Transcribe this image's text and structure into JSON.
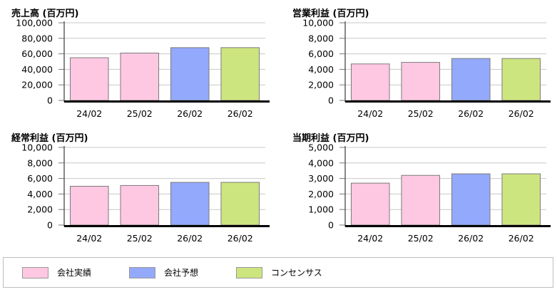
{
  "legend": {
    "items": [
      {
        "label": "会社実績",
        "color": "#ffc8e2"
      },
      {
        "label": "会社予想",
        "color": "#93a9fb"
      },
      {
        "label": "コンセンサス",
        "color": "#cde57f"
      }
    ]
  },
  "chart_data": [
    {
      "type": "bar",
      "title": "売上高 (百万円)",
      "categories": [
        "24/02",
        "25/02",
        "26/02",
        "26/02"
      ],
      "values": [
        55000,
        61000,
        68000,
        68000
      ],
      "colors": [
        "#ffc8e2",
        "#ffc8e2",
        "#93a9fb",
        "#cde57f"
      ],
      "yticks": [
        "0",
        "20,000",
        "40,000",
        "60,000",
        "80,000",
        "100,000"
      ],
      "ylim": [
        0,
        100000
      ]
    },
    {
      "type": "bar",
      "title": "営業利益 (百万円)",
      "categories": [
        "24/02",
        "25/02",
        "26/02",
        "26/02"
      ],
      "values": [
        4700,
        4900,
        5400,
        5400
      ],
      "colors": [
        "#ffc8e2",
        "#ffc8e2",
        "#93a9fb",
        "#cde57f"
      ],
      "yticks": [
        "0",
        "2,000",
        "4,000",
        "6,000",
        "8,000",
        "10,000"
      ],
      "ylim": [
        0,
        10000
      ]
    },
    {
      "type": "bar",
      "title": "経常利益 (百万円)",
      "categories": [
        "24/02",
        "25/02",
        "26/02",
        "26/02"
      ],
      "values": [
        5000,
        5100,
        5500,
        5500
      ],
      "colors": [
        "#ffc8e2",
        "#ffc8e2",
        "#93a9fb",
        "#cde57f"
      ],
      "yticks": [
        "0",
        "2,000",
        "4,000",
        "6,000",
        "8,000",
        "10,000"
      ],
      "ylim": [
        0,
        10000
      ]
    },
    {
      "type": "bar",
      "title": "当期利益 (百万円)",
      "categories": [
        "24/02",
        "25/02",
        "26/02",
        "26/02"
      ],
      "values": [
        2700,
        3200,
        3300,
        3300
      ],
      "colors": [
        "#ffc8e2",
        "#ffc8e2",
        "#93a9fb",
        "#cde57f"
      ],
      "yticks": [
        "0",
        "1,000",
        "2,000",
        "3,000",
        "4,000",
        "5,000"
      ],
      "ylim": [
        0,
        5000
      ]
    }
  ]
}
